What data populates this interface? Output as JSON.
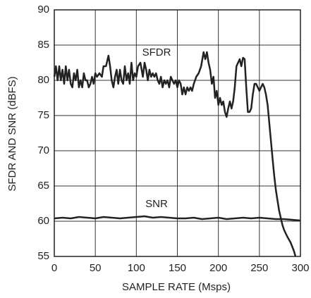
{
  "chart_data": {
    "type": "line",
    "xlabel": "SAMPLE RATE (Msps)",
    "ylabel": "SFDR AND SNR (dBFS)",
    "xlim": [
      0,
      300
    ],
    "ylim": [
      55,
      90
    ],
    "xticks": [
      0,
      50,
      100,
      150,
      200,
      250,
      300
    ],
    "yticks": [
      55,
      60,
      65,
      70,
      75,
      80,
      85,
      90
    ],
    "grid": true,
    "series": [
      {
        "name": "SFDR",
        "color": "#222222",
        "x": [
          0,
          2,
          4,
          6,
          8,
          10,
          12,
          14,
          16,
          18,
          20,
          22,
          24,
          26,
          28,
          30,
          32,
          34,
          36,
          38,
          40,
          42,
          44,
          46,
          48,
          50,
          52,
          55,
          58,
          60,
          63,
          66,
          68,
          70,
          72,
          74,
          76,
          78,
          80,
          82,
          84,
          86,
          88,
          90,
          92,
          94,
          96,
          98,
          100,
          102,
          105,
          108,
          110,
          112,
          114,
          116,
          118,
          120,
          122,
          124,
          126,
          128,
          130,
          132,
          134,
          136,
          138,
          140,
          142,
          144,
          146,
          148,
          150,
          152,
          154,
          156,
          158,
          160,
          162,
          164,
          166,
          168,
          170,
          173,
          176,
          179,
          182,
          184,
          186,
          188,
          190,
          192,
          194,
          196,
          198,
          200,
          202,
          204,
          206,
          208,
          210,
          212,
          214,
          216,
          218,
          220,
          222,
          224,
          226,
          228,
          230,
          232,
          234,
          236,
          238,
          240,
          242,
          244,
          246,
          248,
          250,
          254,
          256,
          258,
          260,
          262,
          264,
          266,
          268,
          270,
          272,
          274,
          276,
          278,
          280,
          284,
          288,
          292,
          294
        ],
        "values": [
          80.5,
          82,
          80,
          82,
          80,
          81.5,
          79.5,
          82,
          80,
          81.5,
          79.5,
          79,
          81,
          80,
          81.5,
          79,
          80,
          79,
          81,
          80,
          80,
          79,
          79.5,
          80.5,
          79.5,
          81,
          80.5,
          81,
          80.5,
          82,
          82,
          83.5,
          82,
          80,
          79,
          80.5,
          81.5,
          79.5,
          81.5,
          80,
          79.5,
          82,
          80,
          81,
          79.5,
          82.5,
          80,
          81,
          80.5,
          82,
          82.5,
          80.5,
          82.5,
          81.5,
          80,
          81.5,
          80.5,
          81,
          80.5,
          81,
          80,
          79.5,
          80.5,
          79,
          80,
          79.5,
          80,
          79,
          80.5,
          80,
          79.5,
          80,
          79,
          80,
          79.5,
          78,
          79,
          78,
          79,
          78.5,
          79,
          78.5,
          79.5,
          80.5,
          81,
          82,
          84,
          83,
          84,
          82.5,
          81.5,
          79.5,
          80.5,
          77.5,
          78.5,
          76.5,
          77.5,
          76.5,
          77,
          75.5,
          74.8,
          76,
          77,
          76,
          77,
          79,
          82,
          82.5,
          83,
          82,
          83.2,
          83,
          79,
          75.5,
          75.5,
          76,
          78,
          79.5,
          79.5,
          79,
          78.5,
          79.5,
          79,
          78,
          76.5,
          74,
          71.5,
          69,
          66.5,
          64.5,
          63,
          61.5,
          60.5,
          59.5,
          58.8,
          57.8,
          57,
          55.8,
          55
        ]
      },
      {
        "name": "SNR",
        "color": "#222222",
        "x": [
          0,
          10,
          20,
          30,
          40,
          50,
          60,
          70,
          80,
          90,
          100,
          110,
          120,
          130,
          140,
          150,
          160,
          170,
          180,
          190,
          200,
          210,
          220,
          230,
          240,
          250,
          260,
          270,
          280,
          290,
          300
        ],
        "values": [
          60.4,
          60.5,
          60.4,
          60.6,
          60.5,
          60.4,
          60.6,
          60.5,
          60.4,
          60.5,
          60.6,
          60.7,
          60.5,
          60.6,
          60.5,
          60.4,
          60.4,
          60.5,
          60.3,
          60.4,
          60.5,
          60.3,
          60.4,
          60.5,
          60.4,
          60.5,
          60.4,
          60.3,
          60.3,
          60.2,
          60.1
        ]
      }
    ]
  }
}
